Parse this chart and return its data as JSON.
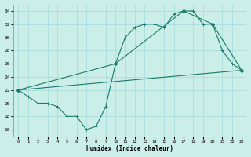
{
  "xlabel": "Humidex (Indice chaleur)",
  "background_color": "#cceee8",
  "grid_color": "#aadddd",
  "line_color": "#1a7a6a",
  "xlim": [
    -0.5,
    23.5
  ],
  "ylim": [
    15.0,
    35.0
  ],
  "xticks": [
    0,
    1,
    2,
    3,
    4,
    5,
    6,
    7,
    8,
    9,
    10,
    11,
    12,
    13,
    14,
    15,
    16,
    17,
    18,
    19,
    20,
    21,
    22,
    23
  ],
  "yticks": [
    16,
    18,
    20,
    22,
    24,
    26,
    28,
    30,
    32,
    34
  ],
  "line1_x": [
    0,
    1,
    2,
    3,
    4,
    5,
    6,
    7,
    8,
    9,
    10,
    11,
    12,
    13,
    14,
    15,
    16,
    17,
    18,
    19,
    20,
    21,
    22,
    23
  ],
  "line1_y": [
    22,
    21,
    20,
    20,
    19.5,
    18,
    18,
    16,
    16.5,
    19.5,
    26,
    30,
    31.5,
    32,
    32,
    31.5,
    33.5,
    34,
    34,
    32,
    32,
    28,
    26,
    25
  ],
  "line2_x": [
    0,
    23
  ],
  "line2_y": [
    22,
    25
  ],
  "line3_x": [
    0,
    10,
    17,
    20,
    23
  ],
  "line3_y": [
    22,
    26,
    34,
    32,
    25
  ],
  "line3_markers": true,
  "marker_x": [
    0,
    10,
    17,
    20,
    23
  ],
  "marker_y": [
    22,
    26,
    34,
    32,
    25
  ]
}
